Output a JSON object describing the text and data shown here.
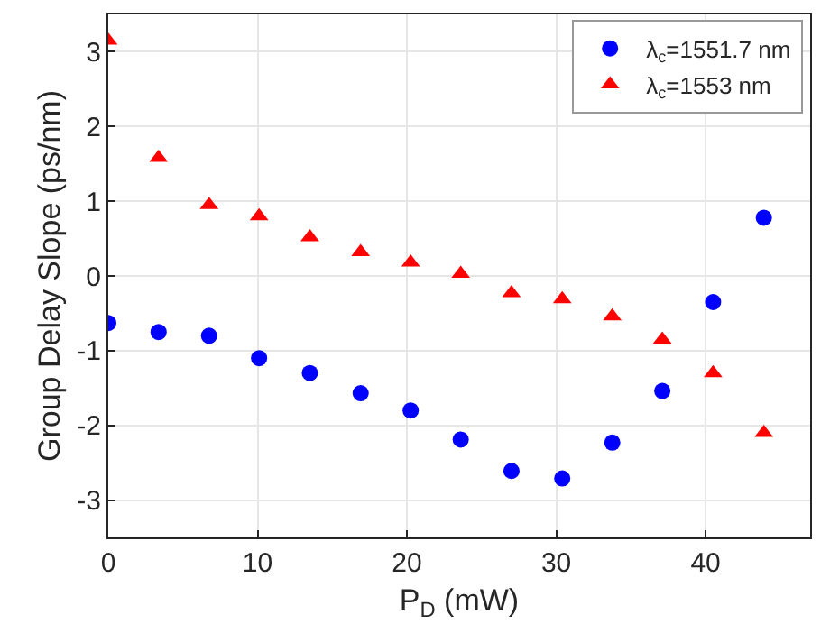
{
  "chart_data": {
    "type": "scatter",
    "xlabel": "P$_{D}$ (mW)",
    "ylabel": "Group Delay Slope (ps/nm)",
    "xlim": [
      0,
      47
    ],
    "xticks": [
      0,
      10,
      20,
      30,
      40
    ],
    "ylim": [
      -3.5,
      3.5
    ],
    "yticks": [
      -3,
      -2,
      -1,
      0,
      1,
      2,
      3
    ],
    "grid": true,
    "legend": "top right",
    "series": [
      {
        "name": "λ$_{c}$=1551.7 nm",
        "color": "#0000ff",
        "marker": "circle",
        "x": [
          0,
          3.37,
          6.75,
          10.1,
          13.5,
          16.9,
          20.25,
          23.6,
          27,
          30.4,
          33.75,
          37.1,
          40.5,
          43.9
        ],
        "values": [
          -0.63,
          -0.75,
          -0.8,
          -1.1,
          -1.3,
          -1.57,
          -1.8,
          -2.19,
          -2.61,
          -2.71,
          -2.23,
          -1.54,
          -0.35,
          0.78
        ]
      },
      {
        "name": "λ$_{c}$=1553 nm",
        "color": "#ff0000",
        "marker": "triangle",
        "x": [
          0,
          3.37,
          6.75,
          10.1,
          13.5,
          16.9,
          20.25,
          23.6,
          27,
          30.4,
          33.75,
          37.1,
          40.5,
          43.9
        ],
        "values": [
          3.15,
          1.58,
          0.95,
          0.8,
          0.52,
          0.32,
          0.18,
          0.03,
          -0.23,
          -0.31,
          -0.54,
          -0.85,
          -1.3,
          -2.1
        ]
      }
    ]
  }
}
